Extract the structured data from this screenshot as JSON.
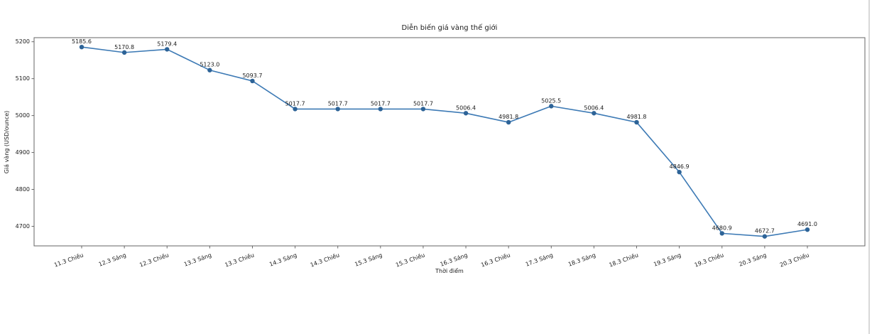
{
  "figure": {
    "title": "Diễn biến giá vàng thế giới",
    "xlabel": "Thời điểm",
    "ylabel": "Giá vàng (USD/ounce)"
  },
  "chart_data": {
    "type": "line",
    "title": "Diễn biến giá vàng thế giới",
    "xlabel": "Thời điểm",
    "ylabel": "Giá vàng (USD/ounce)",
    "categories": [
      "11.3 Chiều",
      "12.3 Sáng",
      "12.3 Chiều",
      "13.3 Sáng",
      "13.3 Chiều",
      "14.3 Sáng",
      "14.3 Chiều",
      "15.3 Sáng",
      "15.3 Chiều",
      "16.3 Sáng",
      "16.3 Chiều",
      "17.3 Sáng",
      "18.3 Sáng",
      "18.3 Chiều",
      "19.3 Sáng",
      "19.3 Chiều",
      "20.3 Sáng",
      "20.3 Chiều"
    ],
    "values": [
      5185.6,
      5170.8,
      5179.4,
      5123.0,
      5093.7,
      5017.7,
      5017.7,
      5017.7,
      5017.7,
      5006.4,
      4981.8,
      5025.5,
      5006.4,
      4981.8,
      4846.9,
      4680.9,
      4672.7,
      4691.0
    ],
    "point_label_decimals": 1,
    "yticks": [
      4700,
      4800,
      4900,
      5000,
      5100,
      5200
    ],
    "ylim": [
      4647,
      5211
    ],
    "grid": false,
    "legend": null,
    "line_color": "#3d7ab5",
    "marker_color": "#2d6397",
    "spine_color": "#666666",
    "text_color": "#1a1a1a",
    "x_tick_rotation_deg": 20
  }
}
